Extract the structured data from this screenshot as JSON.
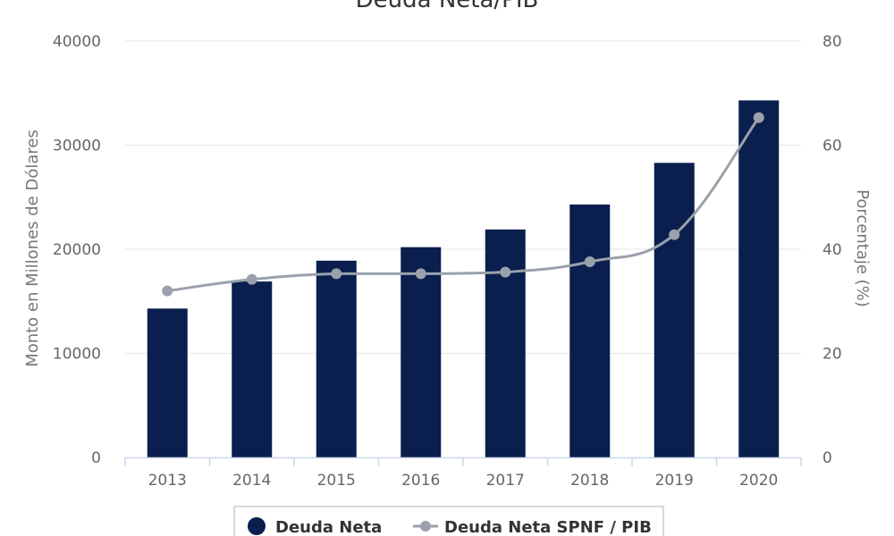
{
  "chart_data": {
    "type": "bar",
    "title": "Deuda Neta/PIB",
    "categories": [
      "2013",
      "2014",
      "2015",
      "2016",
      "2017",
      "2018",
      "2019",
      "2020"
    ],
    "series": [
      {
        "name": "Deuda Neta",
        "type": "bar",
        "axis": "left",
        "color": "#0a1f4e",
        "values": [
          14300,
          16900,
          18900,
          20200,
          21900,
          24300,
          28300,
          34300
        ]
      },
      {
        "name": "Deuda Neta SPNF / PIB",
        "type": "line",
        "axis": "right",
        "color": "#9aa1ab",
        "values": [
          32,
          34.2,
          35.3,
          35.3,
          35.6,
          37.6,
          42.8,
          65.3
        ]
      }
    ],
    "y_left": {
      "label": "Monto en Millones de Dólares",
      "min": 0,
      "max": 40000,
      "ticks": [
        "0",
        "10000",
        "20000",
        "30000",
        "40000"
      ]
    },
    "y_right": {
      "label": "Porcentaje (%)",
      "min": 0,
      "max": 80,
      "ticks": [
        "0",
        "20",
        "40",
        "60",
        "80"
      ]
    },
    "grid": true,
    "legend_position": "bottom"
  }
}
